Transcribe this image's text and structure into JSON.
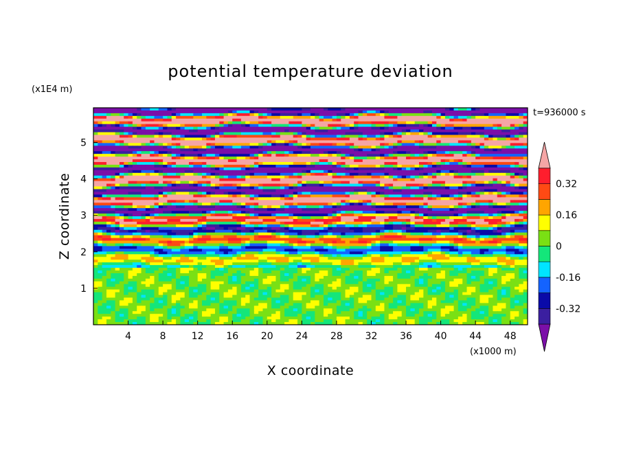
{
  "chart_data": {
    "type": "heatmap",
    "title": "potential temperature deviation",
    "xlabel": "X coordinate",
    "ylabel": "Z coordinate",
    "x_unit": "(x1000 m)",
    "y_unit": "(x1E4 m)",
    "time_label": "t=936000 s",
    "xlim": [
      0,
      50
    ],
    "ylim": [
      0,
      5.95
    ],
    "x_ticks": [
      "4",
      "8",
      "12",
      "16",
      "20",
      "24",
      "28",
      "32",
      "36",
      "40",
      "44",
      "48"
    ],
    "y_ticks": [
      "1",
      "2",
      "3",
      "4",
      "5"
    ],
    "colorbar": {
      "tick_labels": [
        "0.32",
        "0.16",
        "0",
        "-0.16",
        "-0.32"
      ],
      "tick_values": [
        0.32,
        0.16,
        0,
        -0.16,
        -0.32
      ],
      "levels": [
        -0.4,
        -0.32,
        -0.24,
        -0.16,
        -0.08,
        0,
        0.08,
        0.16,
        0.24,
        0.32,
        0.4
      ],
      "colors": [
        "#7b0fa8",
        "#3b1fa0",
        "#0a0aa8",
        "#1463ff",
        "#00e5ff",
        "#14e67a",
        "#7ae014",
        "#ffff00",
        "#ffa500",
        "#ff4a14",
        "#ff1e2d",
        "#f5a5a5"
      ],
      "extend": "both"
    },
    "grid": false
  }
}
